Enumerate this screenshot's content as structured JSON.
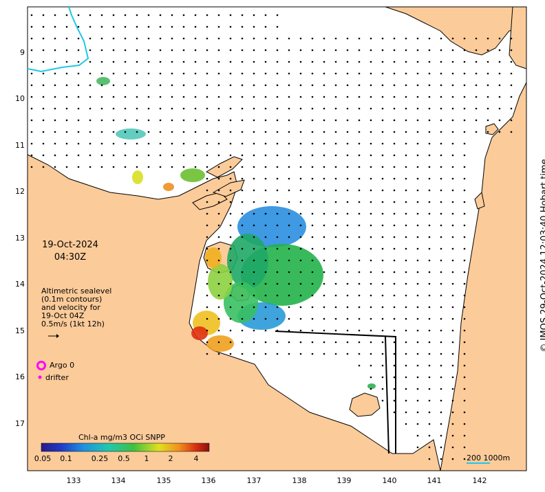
{
  "map": {
    "date": "19-Oct-2024",
    "time": "04:30Z",
    "legend_lines": [
      "Altimetric sealevel",
      "(0.1m contours)",
      "and velocity for",
      "19-Oct 04Z",
      "0.5m/s (1kt 12h)"
    ],
    "argo_label": "Argo 0",
    "drifter_label": "drifter",
    "colorbar_title": "Chl-a mg/m3 OCi SNPP",
    "colorbar_ticks": [
      "0.05",
      "0.1",
      "0.25",
      "0.5",
      "1",
      "2",
      "4"
    ],
    "credit": "© IMOS 29-Oct-2024 12:03:40 Hobart time",
    "scale_label": "200  1000m",
    "y_ticks": [
      "9",
      "10",
      "11",
      "12",
      "13",
      "14",
      "15",
      "16",
      "17"
    ],
    "x_ticks": [
      "133",
      "134",
      "135",
      "136",
      "137",
      "138",
      "139",
      "140",
      "141",
      "142"
    ]
  },
  "colors": {
    "land": "#fbcb9a",
    "coast": "#000000",
    "cyan_line": "#1ec8e6",
    "argo": "#ff00ff"
  }
}
